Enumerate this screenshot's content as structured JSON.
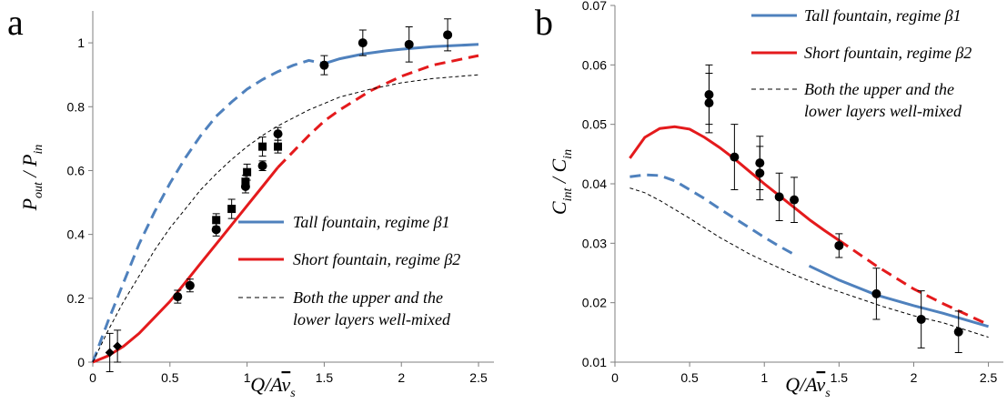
{
  "figure": {
    "panels": [
      {
        "letter": "a"
      },
      {
        "letter": "b"
      }
    ]
  },
  "legend": {
    "tall": "Tall fountain, regime β1",
    "short": "Short fountain, regime β2",
    "mixed_line1": "Both the upper and the",
    "mixed_line2": "lower layers well-mixed"
  },
  "colors": {
    "tall": "#4f81bd",
    "short": "#e41a1c",
    "mixed": "#000000",
    "axis": "#7f7f7f"
  },
  "chart_data": [
    {
      "type": "line",
      "panel": "a",
      "xlabel": "Q/Av̄s",
      "ylabel": "Pout / Pin",
      "xlim": [
        0,
        2.6
      ],
      "ylim": [
        0,
        1.1
      ],
      "x_ticks": [
        "0",
        "0.5",
        "1",
        "1.5",
        "2",
        "2.5"
      ],
      "y_ticks": [
        "0",
        "0.2",
        "0.4",
        "0.6",
        "0.8",
        "1"
      ],
      "series": [
        {
          "name": "Tall fountain, regime β1",
          "style": "blue; dashed for x<1.5, solid for x≥1.5",
          "x": [
            0,
            0.1,
            0.2,
            0.3,
            0.4,
            0.5,
            0.6,
            0.7,
            0.8,
            0.9,
            1.0,
            1.1,
            1.2,
            1.3,
            1.4,
            1.5,
            1.6,
            1.75,
            1.9,
            2.0,
            2.2,
            2.5
          ],
          "y": [
            0,
            0.13,
            0.25,
            0.37,
            0.47,
            0.56,
            0.64,
            0.71,
            0.77,
            0.815,
            0.855,
            0.885,
            0.91,
            0.93,
            0.945,
            0.935,
            0.95,
            0.965,
            0.975,
            0.98,
            0.988,
            0.995
          ]
        },
        {
          "name": "Short fountain, regime β2",
          "style": "red; solid for x≤1.2, dashed for x>1.2",
          "x": [
            0,
            0.1,
            0.2,
            0.3,
            0.4,
            0.5,
            0.6,
            0.7,
            0.8,
            0.9,
            1.0,
            1.1,
            1.2,
            1.3,
            1.4,
            1.5,
            1.6,
            1.7,
            1.8,
            2.0,
            2.2,
            2.5
          ],
          "y": [
            0,
            0.02,
            0.05,
            0.09,
            0.14,
            0.19,
            0.25,
            0.31,
            0.37,
            0.43,
            0.49,
            0.55,
            0.61,
            0.66,
            0.71,
            0.755,
            0.79,
            0.82,
            0.85,
            0.895,
            0.93,
            0.96
          ]
        },
        {
          "name": "Both the upper and the lower layers well-mixed",
          "style": "black thin dashed",
          "x": [
            0,
            0.1,
            0.2,
            0.3,
            0.4,
            0.5,
            0.6,
            0.7,
            0.8,
            0.9,
            1.0,
            1.1,
            1.2,
            1.4,
            1.6,
            1.8,
            2.0,
            2.2,
            2.5
          ],
          "y": [
            0,
            0.1,
            0.19,
            0.27,
            0.35,
            0.42,
            0.48,
            0.54,
            0.59,
            0.635,
            0.675,
            0.71,
            0.74,
            0.79,
            0.83,
            0.855,
            0.875,
            0.888,
            0.9
          ]
        }
      ],
      "points": [
        {
          "marker": "diamond",
          "x": 0.11,
          "y": 0.03,
          "err": 0.06
        },
        {
          "marker": "diamond",
          "x": 0.16,
          "y": 0.05,
          "err": 0.05
        },
        {
          "marker": "circle",
          "x": 0.55,
          "y": 0.205,
          "err": 0.02
        },
        {
          "marker": "circle",
          "x": 0.63,
          "y": 0.24,
          "err": 0.02
        },
        {
          "marker": "circle",
          "x": 0.8,
          "y": 0.415,
          "err": 0.02
        },
        {
          "marker": "square",
          "x": 0.8,
          "y": 0.445,
          "err": 0.02
        },
        {
          "marker": "square",
          "x": 0.9,
          "y": 0.48,
          "err": 0.03
        },
        {
          "marker": "circle",
          "x": 0.99,
          "y": 0.55,
          "err": 0.02
        },
        {
          "marker": "square",
          "x": 0.99,
          "y": 0.565,
          "err": 0.02
        },
        {
          "marker": "square",
          "x": 1.0,
          "y": 0.595,
          "err": 0.025
        },
        {
          "marker": "circle",
          "x": 1.1,
          "y": 0.615,
          "err": 0.015
        },
        {
          "marker": "square",
          "x": 1.1,
          "y": 0.675,
          "err": 0.03
        },
        {
          "marker": "square",
          "x": 1.2,
          "y": 0.675,
          "err": 0.02
        },
        {
          "marker": "circle",
          "x": 1.2,
          "y": 0.715,
          "err": 0.02
        },
        {
          "marker": "circle",
          "x": 1.5,
          "y": 0.93,
          "err": 0.03
        },
        {
          "marker": "circle",
          "x": 1.75,
          "y": 1.0,
          "err": 0.04
        },
        {
          "marker": "circle",
          "x": 2.05,
          "y": 0.995,
          "err": 0.055
        },
        {
          "marker": "circle",
          "x": 2.3,
          "y": 1.025,
          "err": 0.05
        }
      ]
    },
    {
      "type": "line",
      "panel": "b",
      "xlabel": "Q/Av̄s",
      "ylabel": "Cint / Cin",
      "xlim": [
        0,
        2.6
      ],
      "ylim": [
        0.01,
        0.07
      ],
      "x_ticks": [
        "0",
        "0.5",
        "1",
        "1.5",
        "2",
        "2.5"
      ],
      "y_ticks": [
        "0.01",
        "0.02",
        "0.03",
        "0.04",
        "0.05",
        "0.06",
        "0.07"
      ],
      "series": [
        {
          "name": "Tall fountain, regime β1",
          "style": "blue; dashed for x<1.25, solid for x≥1.25",
          "x": [
            0.1,
            0.2,
            0.3,
            0.4,
            0.5,
            0.6,
            0.7,
            0.8,
            0.9,
            1.0,
            1.1,
            1.2,
            1.3,
            1.5,
            1.75,
            2.0,
            2.2,
            2.5
          ],
          "y": [
            0.0412,
            0.0415,
            0.0414,
            0.0405,
            0.039,
            0.0375,
            0.0358,
            0.0342,
            0.0326,
            0.031,
            0.0295,
            0.0281,
            0.0262,
            0.0238,
            0.0213,
            0.0195,
            0.0182,
            0.016
          ]
        },
        {
          "name": "Short fountain, regime β2",
          "style": "red; solid for x≤1.5, dashed for x>1.5",
          "x": [
            0.1,
            0.2,
            0.3,
            0.4,
            0.5,
            0.6,
            0.7,
            0.8,
            0.9,
            1.0,
            1.1,
            1.2,
            1.3,
            1.4,
            1.5,
            1.75,
            2.0,
            2.2,
            2.5
          ],
          "y": [
            0.0443,
            0.0478,
            0.0493,
            0.0496,
            0.0492,
            0.0478,
            0.0461,
            0.0442,
            0.0421,
            0.04,
            0.038,
            0.036,
            0.034,
            0.0322,
            0.0305,
            0.0262,
            0.0223,
            0.0198,
            0.0163
          ]
        },
        {
          "name": "Both the upper and the lower layers well-mixed",
          "style": "black thin dashed",
          "x": [
            0.1,
            0.2,
            0.3,
            0.4,
            0.5,
            0.6,
            0.7,
            0.8,
            0.9,
            1.0,
            1.2,
            1.4,
            1.6,
            1.8,
            2.0,
            2.2,
            2.5
          ],
          "y": [
            0.0393,
            0.0385,
            0.0372,
            0.0357,
            0.0342,
            0.0326,
            0.031,
            0.0296,
            0.0282,
            0.027,
            0.0247,
            0.0227,
            0.021,
            0.0193,
            0.0178,
            0.0166,
            0.0142
          ]
        }
      ],
      "points": [
        {
          "marker": "circle",
          "x": 0.63,
          "y": 0.055,
          "err": 0.005
        },
        {
          "marker": "circle",
          "x": 0.63,
          "y": 0.0536,
          "err": 0.005
        },
        {
          "marker": "circle",
          "x": 0.8,
          "y": 0.0445,
          "err": 0.0055
        },
        {
          "marker": "circle",
          "x": 0.97,
          "y": 0.0435,
          "err": 0.0045
        },
        {
          "marker": "circle",
          "x": 0.97,
          "y": 0.0418,
          "err": 0.0045
        },
        {
          "marker": "circle",
          "x": 1.1,
          "y": 0.0378,
          "err": 0.004
        },
        {
          "marker": "circle",
          "x": 1.2,
          "y": 0.0373,
          "err": 0.0038
        },
        {
          "marker": "circle",
          "x": 1.5,
          "y": 0.0296,
          "err": 0.002
        },
        {
          "marker": "circle",
          "x": 1.75,
          "y": 0.0215,
          "err": 0.0043
        },
        {
          "marker": "circle",
          "x": 2.05,
          "y": 0.0172,
          "err": 0.0048
        },
        {
          "marker": "circle",
          "x": 2.3,
          "y": 0.0151,
          "err": 0.0035
        }
      ]
    }
  ]
}
